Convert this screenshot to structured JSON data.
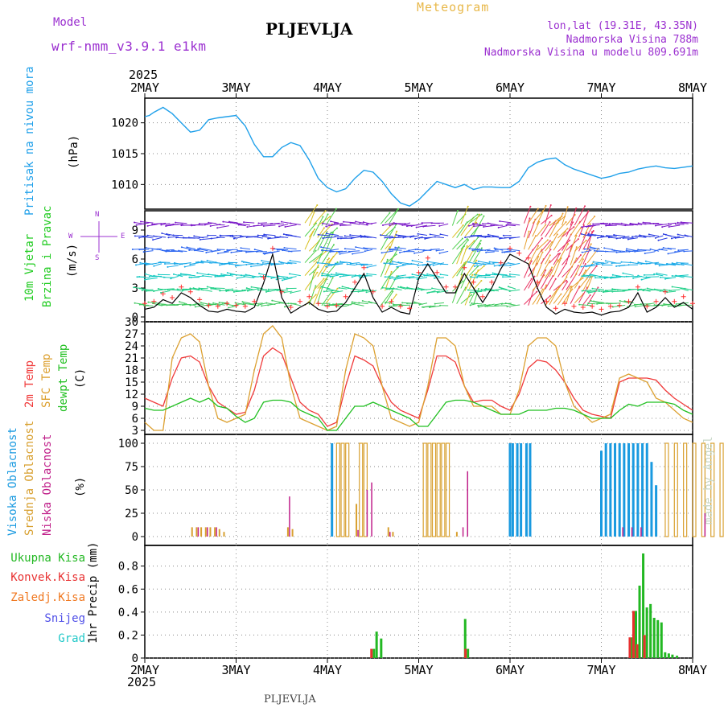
{
  "header": {
    "model_label": "Model",
    "model_name": "wrf-nmm_v3.9.1 e1km",
    "station": "PLJEVLJA",
    "title": "Meteogram",
    "coords": "lon,lat (19.31E, 43.35N)",
    "elevation": "Nadmorska Visina 788m",
    "model_elevation": "Nadmorska Visina u modelu 809.691m",
    "footer_station": "PLJEVLJA",
    "credit": "made by Angel"
  },
  "time_axis": {
    "year": "2025",
    "ticks": [
      "2MAY",
      "3MAY",
      "4MAY",
      "5MAY",
      "6MAY",
      "7MAY",
      "8MAY"
    ]
  },
  "panel_labels": {
    "pressure": {
      "name": "Pritisak na nivou mora",
      "unit": "(hPa)"
    },
    "wind": {
      "name1": "10m Vjetar",
      "name2": "Brzina i Pravac",
      "unit": "(m/s)",
      "compass_n": "N",
      "compass_s": "S",
      "compass_w": "W",
      "compass_e": "E"
    },
    "temp": {
      "name1": "2m Temp",
      "name2": "SFC Temp",
      "name3": "dewpt Temp",
      "unit": "(C)"
    },
    "cloud": {
      "name1": "Visoka Oblacnost",
      "name2": "Srednja Oblacnost",
      "name3": "Niska Oblacnost",
      "unit": "(%)"
    },
    "precip": {
      "unit": "1hr Precip (mm)",
      "legend": [
        "Ukupna Kisa",
        "Konvek.Kisa",
        "Zaledj.Kisa",
        "Snijeg",
        "Grad"
      ]
    }
  },
  "colors": {
    "header_purple": "#9b30d0",
    "header_orange": "#e8b84a",
    "header_blue_label": "#20a0e8",
    "pressure": "#1fa0ea",
    "wind_label": "#22cc22",
    "temp_2m": "#f03a3a",
    "temp_sfc": "#dca030",
    "temp_dew": "#22c022",
    "cloud_high": "#1a9ae0",
    "cloud_mid": "#d8a030",
    "cloud_low": "#c0208a",
    "precip_total": "#22b822",
    "precip_conv": "#e83030",
    "precip_frz": "#f07820",
    "precip_snow": "#5050e8",
    "precip_hail": "#20c8c8"
  },
  "chart_data": [
    {
      "type": "line",
      "title": "Pritisak na nivou mora",
      "ylabel": "(hPa)",
      "xlabel": "",
      "x": [
        0,
        0.05,
        0.1,
        0.2,
        0.3,
        0.4,
        0.5,
        0.6,
        0.7,
        0.8,
        0.9,
        1.0,
        1.1,
        1.2,
        1.3,
        1.4,
        1.5,
        1.6,
        1.7,
        1.8,
        1.9,
        2.0,
        2.1,
        2.2,
        2.3,
        2.4,
        2.5,
        2.6,
        2.7,
        2.8,
        2.9,
        3.0,
        3.1,
        3.2,
        3.3,
        3.4,
        3.5,
        3.6,
        3.7,
        3.8,
        3.9,
        4.0,
        4.1,
        4.2,
        4.3,
        4.4,
        4.5,
        4.6,
        4.7,
        4.8,
        4.9,
        5.0,
        5.1,
        5.2,
        5.3,
        5.4,
        5.5,
        5.6,
        5.7,
        5.8,
        5.9,
        6.0
      ],
      "values": [
        1021.0,
        1021.2,
        1021.7,
        1022.5,
        1021.5,
        1020.0,
        1018.5,
        1018.8,
        1020.5,
        1020.8,
        1021.0,
        1021.2,
        1019.5,
        1016.5,
        1014.5,
        1014.5,
        1016.0,
        1016.8,
        1016.3,
        1014.0,
        1011.0,
        1009.5,
        1008.8,
        1009.3,
        1011.0,
        1012.3,
        1012.0,
        1010.5,
        1008.5,
        1007.0,
        1006.5,
        1007.5,
        1009.0,
        1010.5,
        1010.0,
        1009.5,
        1010.0,
        1009.2,
        1009.6,
        1009.6,
        1009.5,
        1009.5,
        1010.5,
        1012.7,
        1013.6,
        1014.1,
        1014.3,
        1013.2,
        1012.5,
        1012.0,
        1011.5,
        1011.0,
        1011.3,
        1011.8,
        1012.0,
        1012.5,
        1012.8,
        1013.0,
        1012.7,
        1012.6,
        1012.8,
        1013.0
      ],
      "yticks": [
        1010,
        1015,
        1020
      ],
      "ylim": [
        1006,
        1024
      ],
      "grid": true
    },
    {
      "type": "line",
      "title": "10m Vjetar Brzina i Pravac",
      "ylabel": "(m/s)",
      "series": [
        {
          "name": "speed",
          "x": [
            0,
            0.1,
            0.2,
            0.3,
            0.4,
            0.5,
            0.6,
            0.7,
            0.8,
            0.9,
            1.0,
            1.1,
            1.2,
            1.3,
            1.4,
            1.5,
            1.6,
            1.7,
            1.8,
            1.9,
            2.0,
            2.1,
            2.2,
            2.3,
            2.4,
            2.5,
            2.6,
            2.7,
            2.8,
            2.9,
            3.0,
            3.1,
            3.2,
            3.3,
            3.4,
            3.5,
            3.6,
            3.7,
            3.8,
            3.9,
            4.0,
            4.1,
            4.2,
            4.3,
            4.4,
            4.5,
            4.6,
            4.7,
            4.8,
            4.9,
            5.0,
            5.1,
            5.2,
            5.3,
            5.4,
            5.5,
            5.6,
            5.7,
            5.8,
            5.9,
            6.0
          ],
          "values": [
            0.8,
            1.0,
            1.8,
            1.4,
            2.5,
            2.0,
            1.2,
            0.6,
            0.5,
            0.8,
            0.6,
            0.5,
            1.0,
            3.5,
            6.5,
            2.0,
            0.4,
            1.0,
            1.5,
            0.8,
            0.5,
            0.6,
            1.5,
            3.0,
            4.5,
            2.0,
            0.5,
            1.0,
            0.5,
            0.3,
            4.0,
            5.5,
            4.0,
            2.5,
            2.5,
            4.5,
            3.0,
            1.5,
            3.0,
            5.0,
            6.5,
            6.0,
            5.5,
            3.0,
            1.0,
            0.3,
            0.8,
            0.5,
            0.4,
            0.5,
            0.2,
            0.5,
            0.6,
            1.0,
            2.5,
            0.5,
            1.0,
            2.0,
            1.0,
            1.5,
            0.8
          ]
        }
      ],
      "yticks": [
        0,
        3,
        6,
        9
      ],
      "ylim": [
        -0.5,
        11
      ]
    },
    {
      "type": "line",
      "title": "2m Temp / SFC Temp / dewpt Temp",
      "ylabel": "(C)",
      "x": [
        0,
        0.1,
        0.2,
        0.3,
        0.4,
        0.5,
        0.6,
        0.7,
        0.8,
        0.9,
        1.0,
        1.1,
        1.2,
        1.3,
        1.4,
        1.5,
        1.6,
        1.7,
        1.8,
        1.9,
        2.0,
        2.1,
        2.2,
        2.3,
        2.4,
        2.5,
        2.6,
        2.7,
        2.8,
        2.9,
        3.0,
        3.1,
        3.2,
        3.3,
        3.4,
        3.5,
        3.6,
        3.7,
        3.8,
        3.9,
        4.0,
        4.1,
        4.2,
        4.3,
        4.4,
        4.5,
        4.6,
        4.7,
        4.8,
        4.9,
        5.0,
        5.1,
        5.2,
        5.3,
        5.4,
        5.5,
        5.6,
        5.7,
        5.8,
        5.9,
        6.0
      ],
      "series": [
        {
          "name": "2m Temp",
          "values": [
            11,
            10,
            9,
            16,
            21,
            21.5,
            20,
            14,
            10,
            8.5,
            7,
            7.5,
            13,
            21.5,
            23.5,
            22,
            16,
            10,
            8,
            7,
            4,
            5,
            14,
            21.5,
            20.5,
            19,
            14,
            10,
            8,
            7,
            6,
            13,
            21.5,
            21.5,
            20,
            14,
            10,
            10.5,
            10.5,
            9,
            8,
            12,
            18.5,
            20.5,
            20,
            18,
            15,
            11,
            8,
            7,
            6.5,
            6,
            15,
            16,
            16,
            16,
            15.5,
            13,
            11,
            9.5,
            8
          ]
        },
        {
          "name": "SFC Temp",
          "values": [
            5,
            3,
            3,
            21,
            26,
            27,
            25,
            14,
            6,
            5,
            6,
            7,
            18,
            27,
            29,
            26,
            14,
            6,
            5,
            4,
            3,
            4,
            18,
            27,
            26,
            24,
            14,
            6,
            5,
            4,
            5,
            14,
            26,
            26,
            24,
            14,
            9,
            9,
            9,
            7,
            7,
            13,
            24,
            26,
            26,
            24,
            15,
            9,
            7,
            5,
            6,
            7,
            16,
            17,
            16,
            15,
            11,
            10,
            8,
            6,
            5
          ]
        },
        {
          "name": "dewpt Temp",
          "values": [
            8.5,
            8,
            8,
            9,
            10,
            11,
            10,
            11,
            9,
            8.5,
            6.5,
            5,
            6,
            10,
            10.5,
            10.5,
            10,
            8,
            7,
            6,
            3,
            3,
            6,
            9,
            9,
            10,
            9,
            8,
            7,
            6,
            4,
            4,
            7,
            10,
            10.5,
            10.5,
            10,
            9,
            8,
            7,
            7,
            7,
            8,
            8,
            8,
            8.5,
            8.5,
            8,
            7,
            6,
            6,
            6,
            8,
            9.5,
            9,
            10,
            10,
            10,
            9.5,
            8,
            7
          ]
        }
      ],
      "yticks": [
        3,
        6,
        9,
        12,
        15,
        18,
        21,
        24,
        27,
        30
      ],
      "ylim": [
        2,
        30
      ],
      "grid": true
    },
    {
      "type": "bar",
      "title": "Visoka / Srednja / Niska Oblacnost",
      "ylabel": "(%)",
      "series": [
        {
          "name": "Visoka Oblacnost",
          "bars": [
            [
              2.05,
              100
            ],
            [
              4.0,
              100
            ],
            [
              4.03,
              100
            ],
            [
              4.08,
              100
            ],
            [
              4.12,
              100
            ],
            [
              4.18,
              100
            ],
            [
              4.22,
              100
            ],
            [
              5.0,
              92
            ],
            [
              5.05,
              100
            ],
            [
              5.1,
              100
            ],
            [
              5.15,
              100
            ],
            [
              5.2,
              100
            ],
            [
              5.25,
              100
            ],
            [
              5.3,
              100
            ],
            [
              5.35,
              100
            ],
            [
              5.4,
              100
            ],
            [
              5.45,
              100
            ],
            [
              5.5,
              100
            ],
            [
              5.55,
              80
            ],
            [
              5.6,
              55
            ]
          ]
        },
        {
          "name": "Srednja Oblacnost",
          "bars": [
            [
              0.5,
              10
            ],
            [
              0.55,
              10
            ],
            [
              0.6,
              10
            ],
            [
              0.65,
              10
            ],
            [
              0.7,
              10
            ],
            [
              0.75,
              10
            ],
            [
              0.8,
              8
            ],
            [
              0.85,
              5
            ],
            [
              1.55,
              10
            ],
            [
              1.6,
              8
            ],
            [
              2.1,
              100
            ],
            [
              2.15,
              100
            ],
            [
              2.2,
              100
            ],
            [
              2.3,
              35
            ],
            [
              2.35,
              100
            ],
            [
              2.4,
              100
            ],
            [
              2.65,
              10
            ],
            [
              2.7,
              5
            ],
            [
              3.05,
              100
            ],
            [
              3.1,
              100
            ],
            [
              3.15,
              100
            ],
            [
              3.2,
              100
            ],
            [
              3.25,
              100
            ],
            [
              3.3,
              100
            ],
            [
              3.4,
              5
            ],
            [
              5.7,
              100
            ],
            [
              5.8,
              100
            ],
            [
              5.9,
              100
            ],
            [
              6.0,
              100
            ],
            [
              6.1,
              100
            ],
            [
              6.2,
              100
            ],
            [
              6.3,
              100
            ],
            [
              6.4,
              100
            ],
            [
              6.5,
              100
            ],
            [
              6.6,
              100
            ],
            [
              6.7,
              100
            ],
            [
              6.8,
              60
            ],
            [
              6.9,
              85
            ],
            [
              7.0,
              100
            ],
            [
              7.05,
              35
            ],
            [
              7.1,
              20
            ],
            [
              7.15,
              10
            ]
          ]
        },
        {
          "name": "Niska Oblacnost",
          "bars": [
            [
              0.55,
              10
            ],
            [
              0.65,
              10
            ],
            [
              0.75,
              10
            ],
            [
              1.55,
              43
            ],
            [
              2.3,
              7
            ],
            [
              2.4,
              50
            ],
            [
              2.45,
              58
            ],
            [
              2.65,
              5
            ],
            [
              3.45,
              10
            ],
            [
              3.5,
              70
            ],
            [
              5.2,
              10
            ],
            [
              5.3,
              10
            ],
            [
              5.4,
              10
            ],
            [
              6.1,
              25
            ],
            [
              6.5,
              20
            ],
            [
              6.6,
              68
            ],
            [
              6.7,
              78
            ],
            [
              6.8,
              100
            ],
            [
              6.9,
              100
            ],
            [
              7.0,
              95
            ],
            [
              7.05,
              65
            ],
            [
              7.1,
              58
            ],
            [
              7.15,
              50
            ]
          ]
        }
      ],
      "yticks": [
        0,
        25,
        50,
        75,
        100
      ],
      "ylim": [
        0,
        100
      ]
    },
    {
      "type": "bar",
      "title": "1hr Precip (mm)",
      "ylabel": "1hr Precip (mm)",
      "series": [
        {
          "name": "Ukupna Kisa",
          "bars": [
            [
              2.5,
              0.08
            ],
            [
              2.53,
              0.23
            ],
            [
              2.58,
              0.17
            ],
            [
              3.5,
              0.34
            ],
            [
              3.53,
              0.08
            ],
            [
              5.33,
              0.18
            ],
            [
              5.37,
              0.41
            ],
            [
              5.41,
              0.63
            ],
            [
              5.45,
              0.91
            ],
            [
              5.49,
              0.44
            ],
            [
              5.53,
              0.47
            ],
            [
              5.57,
              0.35
            ],
            [
              5.61,
              0.33
            ],
            [
              5.65,
              0.31
            ],
            [
              5.69,
              0.05
            ],
            [
              5.73,
              0.04
            ],
            [
              5.77,
              0.03
            ],
            [
              5.82,
              0.02
            ]
          ]
        },
        {
          "name": "Konvek.Kisa",
          "bars": [
            [
              2.5,
              0.08
            ],
            [
              3.53,
              0.08
            ],
            [
              5.33,
              0.18
            ],
            [
              5.37,
              0.41
            ],
            [
              5.41,
              0.12
            ],
            [
              5.49,
              0.2
            ]
          ]
        }
      ],
      "yticks": [
        0,
        0.2,
        0.4,
        0.6,
        0.8
      ],
      "ylim": [
        0,
        0.98
      ]
    }
  ]
}
